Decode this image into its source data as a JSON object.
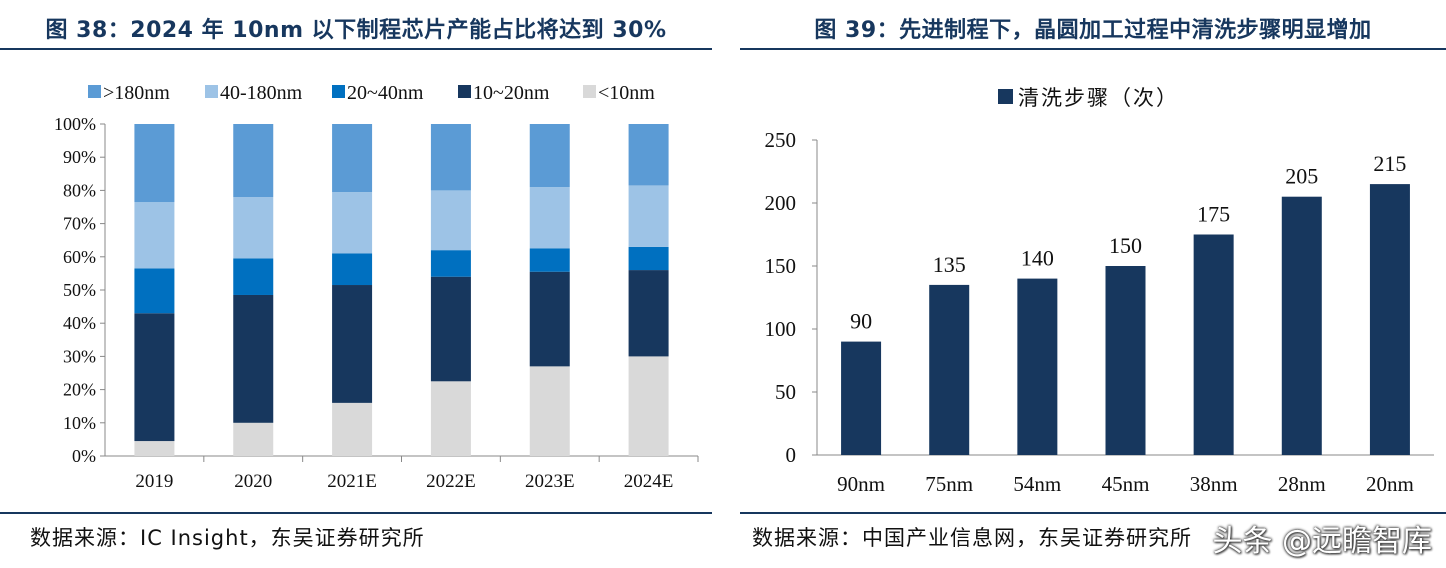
{
  "left": {
    "title": "图 38：2024 年 10nm 以下制程芯片产能占比将达到 30%",
    "source": "数据来源：IC Insight，东吴证券研究所",
    "chart_data": {
      "type": "bar",
      "stacked": true,
      "categories": [
        "2019",
        "2020",
        "2021E",
        "2022E",
        "2023E",
        "2024E"
      ],
      "series": [
        {
          "name": "<10nm",
          "color": "#d9d9d9",
          "values": [
            4.5,
            10,
            16,
            22.5,
            27,
            30
          ]
        },
        {
          "name": "10~20nm",
          "color": "#17375e",
          "values": [
            38.5,
            38.5,
            35.5,
            31.5,
            28.5,
            26
          ]
        },
        {
          "name": "20~40nm",
          "color": "#0070c0",
          "values": [
            13.5,
            11,
            9.5,
            8,
            7,
            7
          ]
        },
        {
          "name": "40-180nm",
          "color": "#9dc3e6",
          "values": [
            20,
            18.5,
            18.5,
            18,
            18.5,
            18.5
          ]
        },
        {
          "name": ">180nm",
          "color": "#5b9bd5",
          "values": [
            23.5,
            22,
            20.5,
            20,
            19,
            18.5
          ]
        }
      ],
      "legend_order": [
        ">180nm",
        "40-180nm",
        "20~40nm",
        "10~20nm",
        "<10nm"
      ],
      "yticks": [
        "0%",
        "10%",
        "20%",
        "30%",
        "40%",
        "50%",
        "60%",
        "70%",
        "80%",
        "90%",
        "100%"
      ],
      "ylim": [
        0,
        100
      ],
      "legend_position": "top",
      "grid": false
    }
  },
  "right": {
    "title": "图 39：先进制程下，晶圆加工过程中清洗步骤明显增加",
    "source": "数据来源：中国产业信息网，东吴证券研究所",
    "watermark": "头条 @远瞻智库",
    "chart_data": {
      "type": "bar",
      "categories": [
        "90nm",
        "75nm",
        "54nm",
        "45nm",
        "38nm",
        "28nm",
        "20nm"
      ],
      "series": [
        {
          "name": "清洗步骤（次）",
          "color": "#17375e",
          "values": [
            90,
            135,
            140,
            150,
            175,
            205,
            215
          ]
        }
      ],
      "yticks": [
        "0",
        "50",
        "100",
        "150",
        "200",
        "250"
      ],
      "ylim": [
        0,
        250
      ],
      "legend_position": "top",
      "grid": false,
      "data_labels": true
    }
  }
}
